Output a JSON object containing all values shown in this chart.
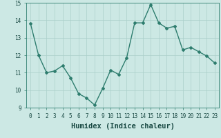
{
  "x": [
    0,
    1,
    2,
    3,
    4,
    5,
    6,
    7,
    8,
    9,
    10,
    11,
    12,
    13,
    14,
    15,
    16,
    17,
    18,
    19,
    20,
    21,
    22,
    23
  ],
  "y": [
    13.8,
    12.0,
    11.0,
    11.1,
    11.4,
    10.7,
    9.8,
    9.55,
    9.15,
    10.1,
    11.15,
    10.9,
    11.85,
    13.85,
    13.85,
    14.9,
    13.85,
    13.55,
    13.65,
    12.3,
    12.45,
    12.2,
    11.95,
    11.55
  ],
  "line_color": "#2e7d6e",
  "marker": "D",
  "marker_size": 2.0,
  "bg_color": "#cce8e4",
  "grid_color": "#aacfca",
  "xlabel": "Humidex (Indice chaleur)",
  "ylim": [
    9,
    15
  ],
  "xlim": [
    -0.5,
    23.5
  ],
  "yticks": [
    9,
    10,
    11,
    12,
    13,
    14,
    15
  ],
  "xticks": [
    0,
    1,
    2,
    3,
    4,
    5,
    6,
    7,
    8,
    9,
    10,
    11,
    12,
    13,
    14,
    15,
    16,
    17,
    18,
    19,
    20,
    21,
    22,
    23
  ],
  "tick_labelsize": 5.5,
  "xlabel_fontsize": 7.5,
  "line_width": 1.0,
  "spine_color": "#2e7d6e",
  "tick_color": "#2e7d6e",
  "label_color": "#1a4a44"
}
